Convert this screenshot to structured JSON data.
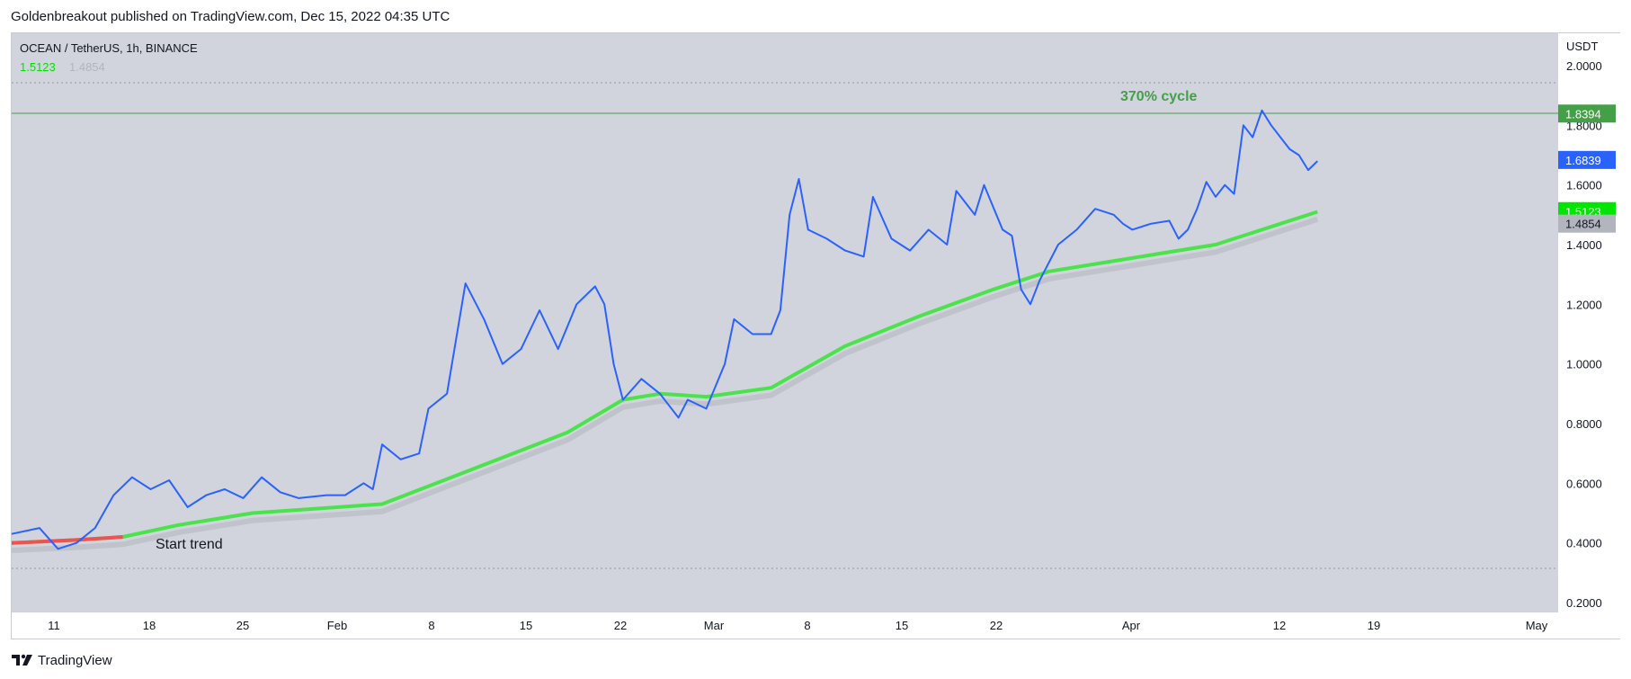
{
  "header": {
    "publish_line": "Goldenbreakout published on TradingView.com, Dec 15, 2022 04:35 UTC"
  },
  "chart_data": {
    "type": "line",
    "symbol_title": "OCEAN / TetherUS, 1h, BINANCE",
    "legend_values": [
      "1.5123",
      "1.4854"
    ],
    "currency_label": "USDT",
    "y_axis": {
      "ticks": [
        "2.0000",
        "1.8000",
        "1.6000",
        "1.4000",
        "1.2000",
        "1.0000",
        "0.8000",
        "0.6000",
        "0.4000",
        "0.2000"
      ],
      "ylim": [
        0.2,
        2.0
      ]
    },
    "x_axis": {
      "ticks": [
        "11",
        "18",
        "25",
        "Feb",
        "8",
        "15",
        "22",
        "Mar",
        "8",
        "15",
        "22",
        "Apr",
        "12",
        "19",
        "May"
      ]
    },
    "annotations": {
      "cycle_label": "370% cycle",
      "start_label": "Start trend",
      "horizontal_level": 1.8394
    },
    "price_badges": [
      {
        "value": "1.8394",
        "color": "#43a047"
      },
      {
        "value": "1.6839",
        "color": "#2962ff"
      },
      {
        "value": "1.5123",
        "color": "#00e600"
      },
      {
        "value": "1.4854",
        "color": "#b2b5be"
      }
    ],
    "series": [
      {
        "color": "#2962ff",
        "points": [
          [
            0,
            0.43
          ],
          [
            3,
            0.45
          ],
          [
            5,
            0.38
          ],
          [
            7,
            0.4
          ],
          [
            9,
            0.45
          ],
          [
            11,
            0.56
          ],
          [
            13,
            0.62
          ],
          [
            15,
            0.58
          ],
          [
            17,
            0.61
          ],
          [
            19,
            0.52
          ],
          [
            21,
            0.56
          ],
          [
            23,
            0.58
          ],
          [
            25,
            0.55
          ],
          [
            27,
            0.62
          ],
          [
            29,
            0.57
          ],
          [
            31,
            0.55
          ],
          [
            34,
            0.56
          ],
          [
            36,
            0.56
          ],
          [
            38,
            0.6
          ],
          [
            39,
            0.58
          ],
          [
            40,
            0.73
          ],
          [
            42,
            0.68
          ],
          [
            44,
            0.7
          ],
          [
            45,
            0.85
          ],
          [
            47,
            0.9
          ],
          [
            49,
            1.27
          ],
          [
            51,
            1.15
          ],
          [
            53,
            1.0
          ],
          [
            55,
            1.05
          ],
          [
            57,
            1.18
          ],
          [
            59,
            1.05
          ],
          [
            61,
            1.2
          ],
          [
            63,
            1.26
          ],
          [
            64,
            1.2
          ],
          [
            65,
            1.0
          ],
          [
            66,
            0.88
          ],
          [
            68,
            0.95
          ],
          [
            70,
            0.9
          ],
          [
            72,
            0.82
          ],
          [
            73,
            0.88
          ],
          [
            75,
            0.85
          ],
          [
            77,
            1.0
          ],
          [
            78,
            1.15
          ],
          [
            80,
            1.1
          ],
          [
            82,
            1.1
          ],
          [
            83,
            1.18
          ],
          [
            84,
            1.5
          ],
          [
            85,
            1.62
          ],
          [
            86,
            1.45
          ],
          [
            88,
            1.42
          ],
          [
            90,
            1.38
          ],
          [
            92,
            1.36
          ],
          [
            93,
            1.56
          ],
          [
            95,
            1.42
          ],
          [
            97,
            1.38
          ],
          [
            99,
            1.45
          ],
          [
            101,
            1.4
          ],
          [
            102,
            1.58
          ],
          [
            104,
            1.5
          ],
          [
            105,
            1.6
          ],
          [
            107,
            1.45
          ],
          [
            108,
            1.43
          ],
          [
            109,
            1.25
          ],
          [
            110,
            1.2
          ],
          [
            111,
            1.28
          ],
          [
            113,
            1.4
          ],
          [
            115,
            1.45
          ],
          [
            117,
            1.52
          ],
          [
            119,
            1.5
          ],
          [
            120,
            1.47
          ],
          [
            121,
            1.45
          ],
          [
            123,
            1.47
          ],
          [
            125,
            1.48
          ],
          [
            126,
            1.42
          ],
          [
            127,
            1.45
          ],
          [
            128,
            1.52
          ],
          [
            129,
            1.61
          ],
          [
            130,
            1.56
          ],
          [
            131,
            1.6
          ],
          [
            132,
            1.57
          ],
          [
            133,
            1.8
          ],
          [
            134,
            1.76
          ],
          [
            135,
            1.85
          ],
          [
            136,
            1.8
          ],
          [
            137,
            1.76
          ],
          [
            138,
            1.72
          ],
          [
            139,
            1.7
          ],
          [
            140,
            1.65
          ],
          [
            141,
            1.68
          ]
        ]
      },
      {
        "color": "#4be34b",
        "points": [
          [
            0,
            0.4
          ],
          [
            7,
            0.41
          ],
          [
            12,
            0.42
          ],
          [
            18,
            0.46
          ],
          [
            26,
            0.5
          ],
          [
            40,
            0.53
          ],
          [
            50,
            0.65
          ],
          [
            60,
            0.77
          ],
          [
            66,
            0.88
          ],
          [
            70,
            0.9
          ],
          [
            75,
            0.89
          ],
          [
            82,
            0.92
          ],
          [
            90,
            1.06
          ],
          [
            98,
            1.16
          ],
          [
            106,
            1.25
          ],
          [
            112,
            1.31
          ],
          [
            118,
            1.34
          ],
          [
            124,
            1.37
          ],
          [
            130,
            1.4
          ],
          [
            135,
            1.45
          ],
          [
            141,
            1.51
          ]
        ]
      }
    ]
  },
  "footer": {
    "brand": "TradingView"
  }
}
